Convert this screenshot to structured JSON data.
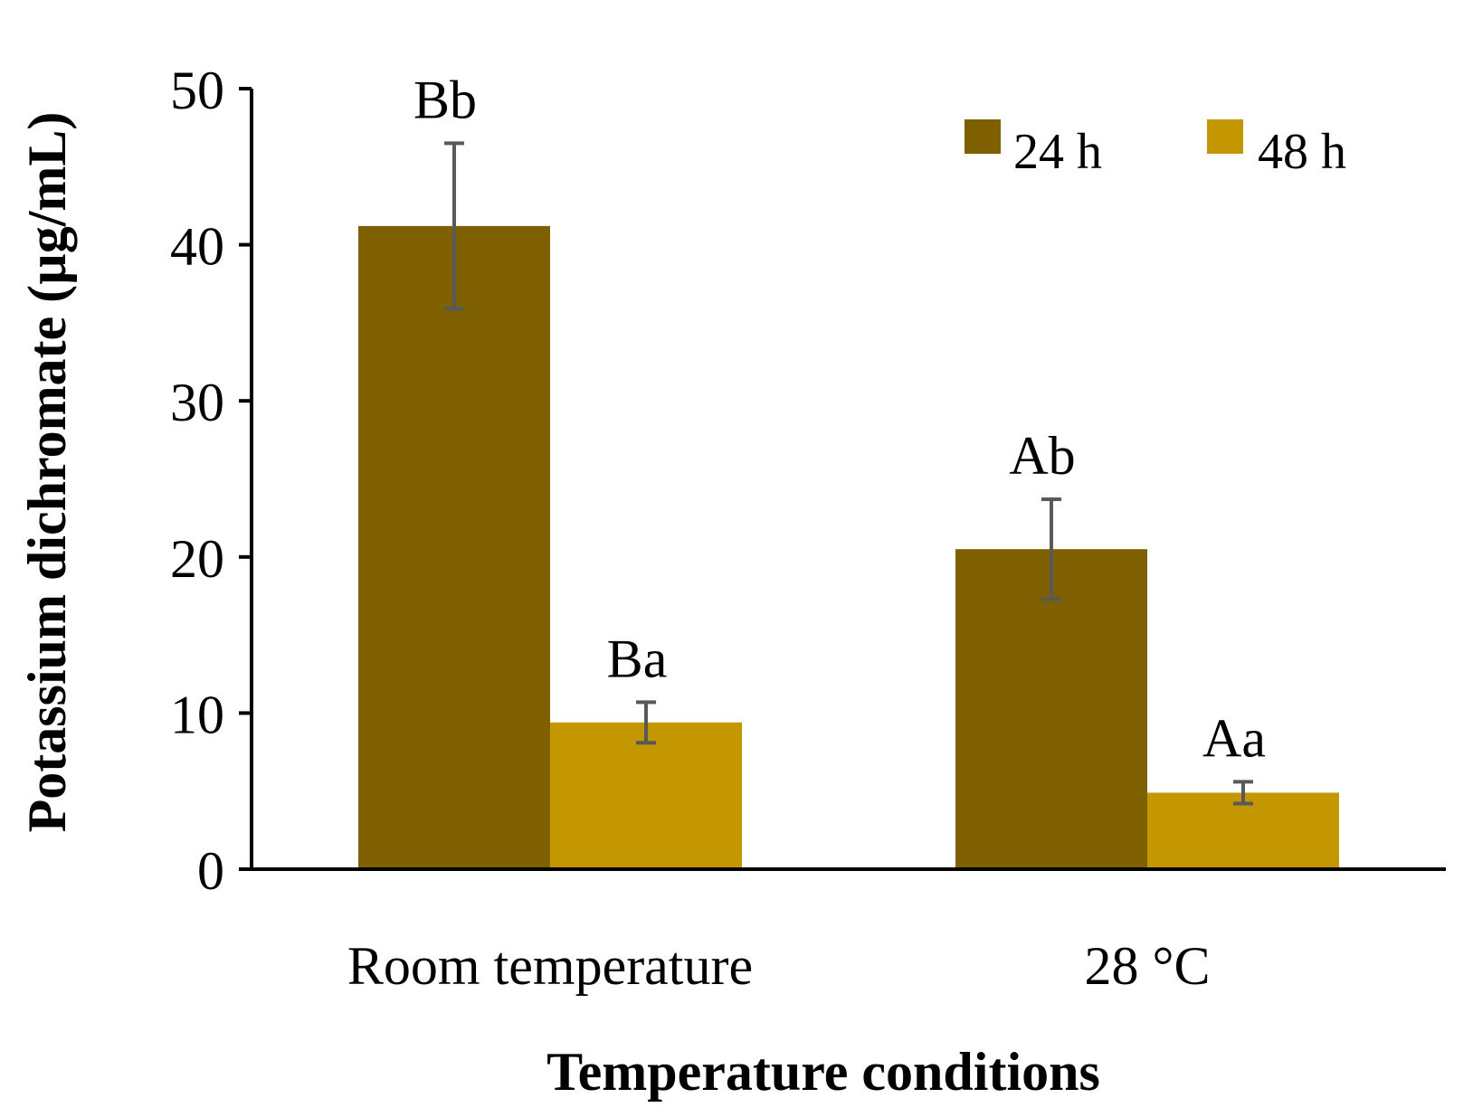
{
  "chart_data": {
    "type": "bar",
    "xlabel": "Temperature conditions",
    "ylabel": "Potassium dichromate (µg/mL)",
    "categories": [
      "Room temperature",
      "28 °C"
    ],
    "ylim": [
      0,
      50
    ],
    "yticks": [
      0,
      10,
      20,
      30,
      40,
      50
    ],
    "grid": false,
    "legend_position": "top-right",
    "series": [
      {
        "name": "24 h",
        "color": "#7f6000",
        "values": [
          41.2,
          20.5
        ],
        "errors": [
          5.3,
          3.2
        ],
        "labels": [
          "Bb",
          "Ab"
        ]
      },
      {
        "name": "48 h",
        "color": "#c49600",
        "values": [
          9.4,
          4.9
        ],
        "errors": [
          1.3,
          0.7
        ],
        "labels": [
          "Ba",
          "Aa"
        ]
      }
    ]
  }
}
